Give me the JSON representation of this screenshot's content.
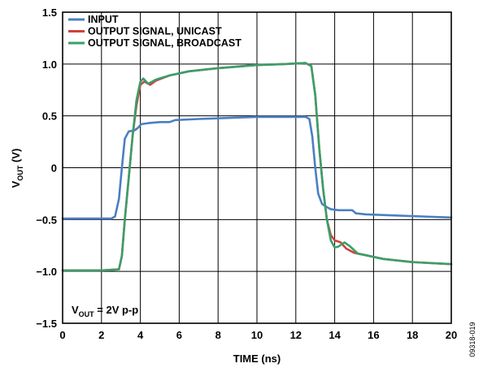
{
  "chart_data": {
    "type": "line",
    "xlabel": "TIME (ns)",
    "ylabel_main": "V",
    "ylabel_sub": "OUT",
    "ylabel_unit": " (V)",
    "xlim": [
      0,
      20
    ],
    "ylim": [
      -1.5,
      1.5
    ],
    "x_ticks": [
      "0",
      "2",
      "4",
      "6",
      "8",
      "10",
      "12",
      "14",
      "16",
      "18",
      "20"
    ],
    "y_ticks": [
      "1.5",
      "1.0",
      "0.5",
      "0",
      "−0.5",
      "−1.0",
      "−1.5"
    ],
    "grid": true,
    "legend_placement": "top-left",
    "annotation": {
      "main": "V",
      "sub": "OUT",
      "rest": " = 2V p-p"
    },
    "figure_id": "09318-019",
    "series": [
      {
        "name": "INPUT",
        "color": "#4a7fc1",
        "points": [
          [
            0,
            -0.49
          ],
          [
            2.5,
            -0.49
          ],
          [
            2.7,
            -0.47
          ],
          [
            2.9,
            -0.3
          ],
          [
            3.05,
            0.0
          ],
          [
            3.2,
            0.28
          ],
          [
            3.4,
            0.35
          ],
          [
            3.7,
            0.36
          ],
          [
            3.85,
            0.38
          ],
          [
            4.05,
            0.42
          ],
          [
            4.4,
            0.43
          ],
          [
            5.0,
            0.44
          ],
          [
            5.5,
            0.44
          ],
          [
            5.8,
            0.46
          ],
          [
            7,
            0.47
          ],
          [
            8.5,
            0.48
          ],
          [
            10,
            0.49
          ],
          [
            12.5,
            0.49
          ],
          [
            12.7,
            0.47
          ],
          [
            12.85,
            0.3
          ],
          [
            13.0,
            0.0
          ],
          [
            13.15,
            -0.25
          ],
          [
            13.35,
            -0.35
          ],
          [
            13.6,
            -0.38
          ],
          [
            13.8,
            -0.4
          ],
          [
            14.2,
            -0.41
          ],
          [
            14.9,
            -0.41
          ],
          [
            15.1,
            -0.44
          ],
          [
            15.6,
            -0.45
          ],
          [
            17,
            -0.46
          ],
          [
            18.5,
            -0.47
          ],
          [
            20,
            -0.48
          ]
        ]
      },
      {
        "name": "OUTPUT SIGNAL, UNICAST",
        "color": "#d1413b",
        "points": [
          [
            0,
            -0.99
          ],
          [
            2,
            -0.99
          ],
          [
            2.9,
            -0.98
          ],
          [
            3.05,
            -0.85
          ],
          [
            3.2,
            -0.5
          ],
          [
            3.4,
            -0.1
          ],
          [
            3.6,
            0.3
          ],
          [
            3.8,
            0.6
          ],
          [
            4.0,
            0.8
          ],
          [
            4.2,
            0.83
          ],
          [
            4.5,
            0.8
          ],
          [
            4.8,
            0.84
          ],
          [
            5.5,
            0.89
          ],
          [
            6.5,
            0.93
          ],
          [
            8,
            0.96
          ],
          [
            10,
            0.99
          ],
          [
            11.5,
            1.0
          ],
          [
            12.5,
            1.01
          ],
          [
            12.8,
            0.98
          ],
          [
            13.0,
            0.7
          ],
          [
            13.2,
            0.2
          ],
          [
            13.4,
            -0.2
          ],
          [
            13.6,
            -0.5
          ],
          [
            13.8,
            -0.65
          ],
          [
            14.0,
            -0.7
          ],
          [
            14.3,
            -0.72
          ],
          [
            14.6,
            -0.78
          ],
          [
            15.0,
            -0.82
          ],
          [
            15.5,
            -0.84
          ],
          [
            16.5,
            -0.88
          ],
          [
            18,
            -0.91
          ],
          [
            20,
            -0.93
          ]
        ]
      },
      {
        "name": "OUTPUT SIGNAL, BROADCAST",
        "color": "#3a9e6a",
        "points": [
          [
            0,
            -0.99
          ],
          [
            2,
            -0.99
          ],
          [
            2.9,
            -0.98
          ],
          [
            3.05,
            -0.85
          ],
          [
            3.2,
            -0.5
          ],
          [
            3.4,
            -0.1
          ],
          [
            3.6,
            0.3
          ],
          [
            3.8,
            0.65
          ],
          [
            4.0,
            0.83
          ],
          [
            4.15,
            0.86
          ],
          [
            4.4,
            0.81
          ],
          [
            4.8,
            0.85
          ],
          [
            5.5,
            0.89
          ],
          [
            6.5,
            0.93
          ],
          [
            8,
            0.96
          ],
          [
            10,
            0.99
          ],
          [
            11.5,
            1.0
          ],
          [
            12.5,
            1.01
          ],
          [
            12.8,
            0.98
          ],
          [
            13.0,
            0.7
          ],
          [
            13.2,
            0.2
          ],
          [
            13.4,
            -0.2
          ],
          [
            13.6,
            -0.5
          ],
          [
            13.8,
            -0.7
          ],
          [
            14.0,
            -0.77
          ],
          [
            14.2,
            -0.76
          ],
          [
            14.5,
            -0.72
          ],
          [
            14.8,
            -0.76
          ],
          [
            15.2,
            -0.83
          ],
          [
            15.5,
            -0.84
          ],
          [
            16.5,
            -0.88
          ],
          [
            18,
            -0.91
          ],
          [
            20,
            -0.93
          ]
        ]
      }
    ]
  }
}
